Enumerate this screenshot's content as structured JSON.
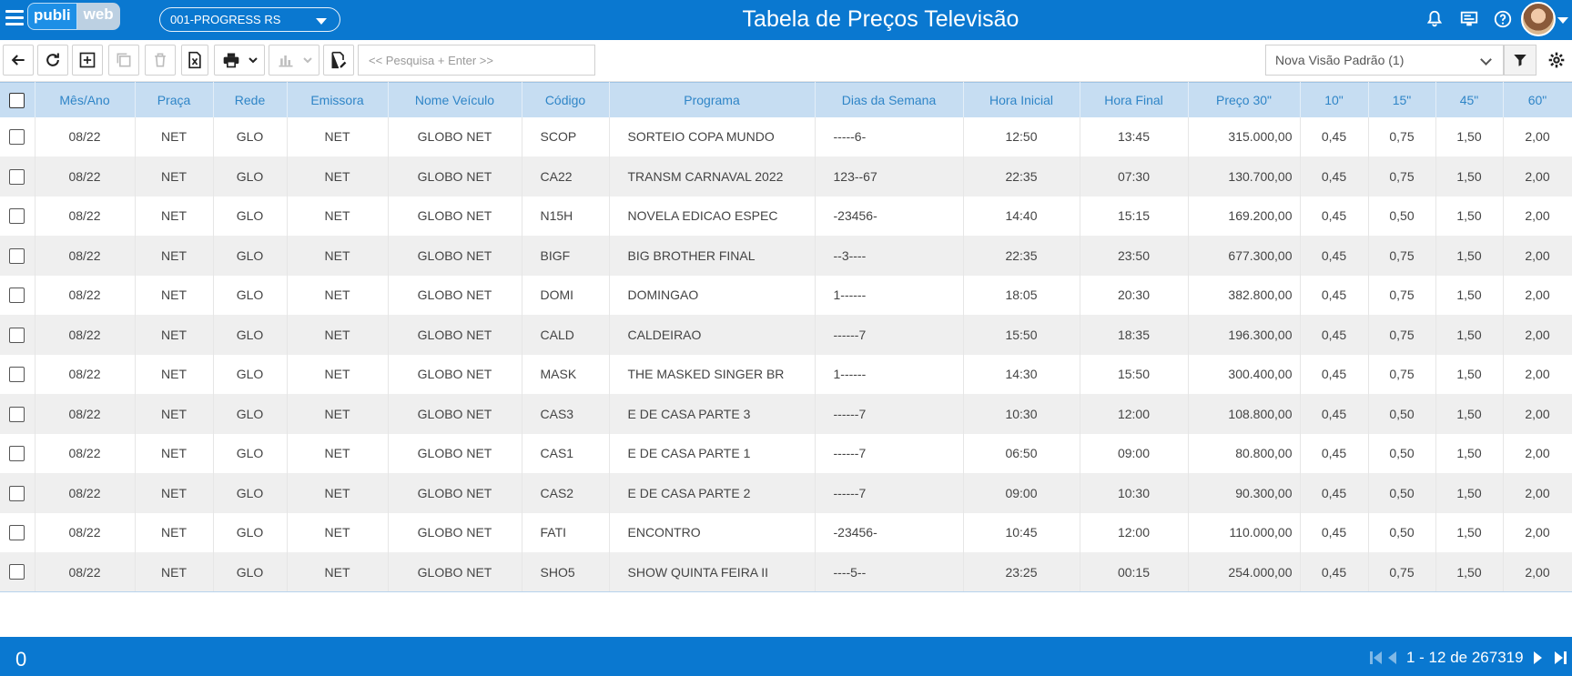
{
  "header": {
    "logo_part1": "publi",
    "logo_part2": "web",
    "company": "001-PROGRESS RS",
    "title": "Tabela de Preços Televisão"
  },
  "toolbar": {
    "search_placeholder": "<< Pesquisa + Enter >>",
    "view": "Nova Visão Padrão (1)"
  },
  "table": {
    "columns": [
      "Mês/Ano",
      "Praça",
      "Rede",
      "Emissora",
      "Nome Veículo",
      "Código",
      "Programa",
      "Dias da Semana",
      "Hora Inicial",
      "Hora Final",
      "Preço 30\"",
      "10\"",
      "15\"",
      "45\"",
      "60\""
    ],
    "rows": [
      [
        "08/22",
        "NET",
        "GLO",
        "NET",
        "GLOBO NET",
        "SCOP",
        "SORTEIO COPA MUNDO",
        "-----6-",
        "12:50",
        "13:45",
        "315.000,00",
        "0,45",
        "0,75",
        "1,50",
        "2,00"
      ],
      [
        "08/22",
        "NET",
        "GLO",
        "NET",
        "GLOBO NET",
        "CA22",
        "TRANSM CARNAVAL 2022",
        "123--67",
        "22:35",
        "07:30",
        "130.700,00",
        "0,45",
        "0,75",
        "1,50",
        "2,00"
      ],
      [
        "08/22",
        "NET",
        "GLO",
        "NET",
        "GLOBO NET",
        "N15H",
        "NOVELA EDICAO ESPEC",
        "-23456-",
        "14:40",
        "15:15",
        "169.200,00",
        "0,45",
        "0,50",
        "1,50",
        "2,00"
      ],
      [
        "08/22",
        "NET",
        "GLO",
        "NET",
        "GLOBO NET",
        "BIGF",
        "BIG BROTHER FINAL",
        "--3----",
        "22:35",
        "23:50",
        "677.300,00",
        "0,45",
        "0,75",
        "1,50",
        "2,00"
      ],
      [
        "08/22",
        "NET",
        "GLO",
        "NET",
        "GLOBO NET",
        "DOMI",
        "DOMINGAO",
        "1------",
        "18:05",
        "20:30",
        "382.800,00",
        "0,45",
        "0,75",
        "1,50",
        "2,00"
      ],
      [
        "08/22",
        "NET",
        "GLO",
        "NET",
        "GLOBO NET",
        "CALD",
        "CALDEIRAO",
        "------7",
        "15:50",
        "18:35",
        "196.300,00",
        "0,45",
        "0,75",
        "1,50",
        "2,00"
      ],
      [
        "08/22",
        "NET",
        "GLO",
        "NET",
        "GLOBO NET",
        "MASK",
        "THE MASKED SINGER BR",
        "1------",
        "14:30",
        "15:50",
        "300.400,00",
        "0,45",
        "0,75",
        "1,50",
        "2,00"
      ],
      [
        "08/22",
        "NET",
        "GLO",
        "NET",
        "GLOBO NET",
        "CAS3",
        "E DE CASA PARTE 3",
        "------7",
        "10:30",
        "12:00",
        "108.800,00",
        "0,45",
        "0,50",
        "1,50",
        "2,00"
      ],
      [
        "08/22",
        "NET",
        "GLO",
        "NET",
        "GLOBO NET",
        "CAS1",
        "E DE CASA PARTE 1",
        "------7",
        "06:50",
        "09:00",
        "80.800,00",
        "0,45",
        "0,50",
        "1,50",
        "2,00"
      ],
      [
        "08/22",
        "NET",
        "GLO",
        "NET",
        "GLOBO NET",
        "CAS2",
        "E DE CASA PARTE 2",
        "------7",
        "09:00",
        "10:30",
        "90.300,00",
        "0,45",
        "0,50",
        "1,50",
        "2,00"
      ],
      [
        "08/22",
        "NET",
        "GLO",
        "NET",
        "GLOBO NET",
        "FATI",
        "ENCONTRO",
        "-23456-",
        "10:45",
        "12:00",
        "110.000,00",
        "0,45",
        "0,50",
        "1,50",
        "2,00"
      ],
      [
        "08/22",
        "NET",
        "GLO",
        "NET",
        "GLOBO NET",
        "SHO5",
        "SHOW QUINTA FEIRA II",
        "----5--",
        "23:25",
        "00:15",
        "254.000,00",
        "0,45",
        "0,75",
        "1,50",
        "2,00"
      ]
    ]
  },
  "footer": {
    "selected_count": "0",
    "pagination": "1 - 12 de 267319"
  },
  "colors": {
    "brand": "#0a78d0",
    "header_row": "#c6ddf2",
    "header_text": "#2f85c7"
  }
}
